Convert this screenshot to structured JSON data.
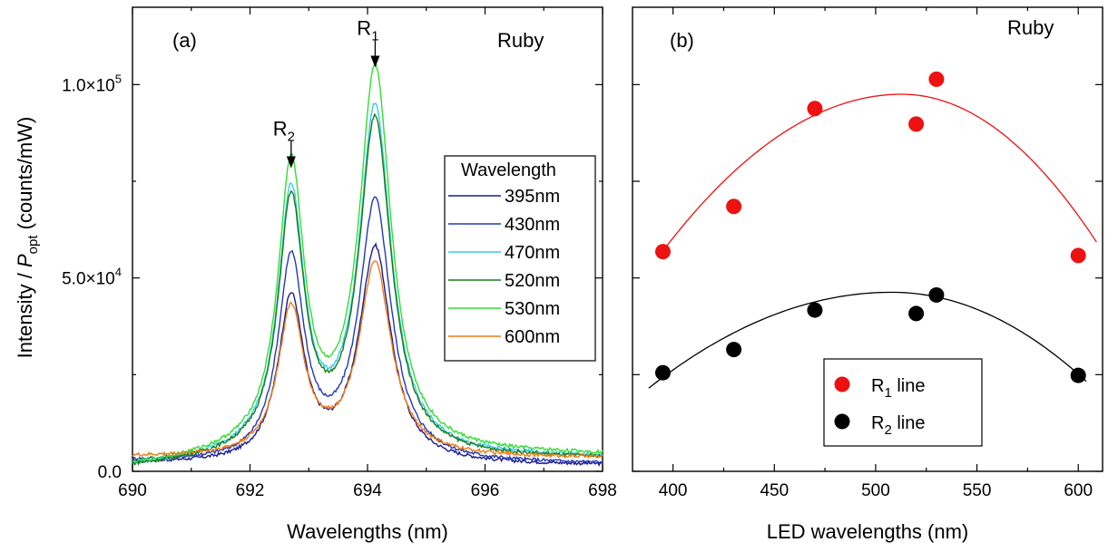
{
  "chart_data": [
    {
      "panel_label": "(a)",
      "annotation": "Ruby",
      "type": "line",
      "xlabel": "Wavelengths (nm)",
      "ylabel_main": "Intensity / ",
      "ylabel_italic": "P",
      "ylabel_sub": "opt",
      "ylabel_tail": " (counts/mW)",
      "xlim": [
        690,
        698
      ],
      "ylim": [
        0,
        120000
      ],
      "xticks": [
        690,
        692,
        694,
        696,
        698
      ],
      "yticks": [
        0,
        50000,
        100000
      ],
      "ytick_labels": [
        "0.0",
        "5.0×10",
        "1.0×10"
      ],
      "ytick_sups": [
        "",
        "4",
        "5"
      ],
      "peak_labels": [
        {
          "main": "R",
          "sub": "1",
          "x": 694.13
        },
        {
          "main": "R",
          "sub": "2",
          "x": 692.7
        }
      ],
      "legend_title": "Wavelength",
      "legend_position": "right",
      "series": [
        {
          "name": "395nm",
          "color": "#1c1c8f",
          "r2": 43500,
          "r1": 57000,
          "dip": 16000,
          "base": 1500,
          "left": 2000
        },
        {
          "name": "430nm",
          "color": "#2438b8",
          "r2": 53500,
          "r1": 69000,
          "dip": 18500,
          "base": 1800,
          "left": 2400
        },
        {
          "name": "470nm",
          "color": "#33ccee",
          "r2": 70000,
          "r1": 93000,
          "dip": 26500,
          "base": 3500,
          "left": 1000
        },
        {
          "name": "520nm",
          "color": "#1a7a1a",
          "r2": 68000,
          "r1": 90000,
          "dip": 26000,
          "base": 3200,
          "left": 900
        },
        {
          "name": "530nm",
          "color": "#33dd33",
          "r2": 77000,
          "r1": 103000,
          "dip": 29500,
          "base": 4200,
          "left": 1100
        },
        {
          "name": "600nm",
          "color": "#ee7a11",
          "r2": 41000,
          "r1": 53000,
          "dip": 18000,
          "base": 3400,
          "left": 3600
        }
      ]
    },
    {
      "panel_label": "(b)",
      "annotation": "Ruby",
      "type": "scatter",
      "xlabel": "LED wavelengths (nm)",
      "xlim": [
        380,
        612
      ],
      "ylim": [
        0,
        120000
      ],
      "xticks": [
        400,
        450,
        500,
        550,
        600
      ],
      "yticks": [
        0,
        25000,
        50000,
        75000,
        100000
      ],
      "legend_position": "bottom-right",
      "series": [
        {
          "name_main": "R",
          "name_sub": "1",
          "name_tail": " line",
          "color": "#ee1111",
          "x": [
            395,
            430,
            470,
            520,
            530,
            600
          ],
          "y": [
            56800,
            68500,
            93800,
            89800,
            101400,
            55800
          ],
          "fit": {
            "peak_x": 513,
            "peak_y": 97500,
            "x_range": [
              395,
              610
            ],
            "ends": [
              57000,
              58500
            ]
          }
        },
        {
          "name_main": "R",
          "name_sub": "2",
          "name_tail": " line",
          "color": "#000000",
          "x": [
            395,
            430,
            470,
            520,
            530,
            600
          ],
          "y": [
            25500,
            31500,
            41700,
            40800,
            45600,
            24800
          ],
          "fit": {
            "peak_x": 508,
            "peak_y": 46300,
            "x_range": [
              388,
              605
            ],
            "ends": [
              21500,
              22800
            ]
          }
        }
      ]
    }
  ]
}
